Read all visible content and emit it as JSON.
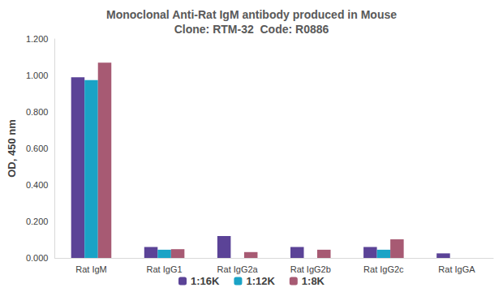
{
  "chart_data": {
    "type": "bar",
    "title": "Monoclonal Anti-Rat IgM antibody produced in Mouse\nClone: RTM-32  Code: R0886",
    "y_label": "OD, 450 nm",
    "categories": [
      "Rat IgM",
      "Rat IgG1",
      "Rat IgG2a",
      "Rat IgG2b",
      "Rat IgG2c",
      "Rat IgGA"
    ],
    "series": [
      {
        "name": "1:16K",
        "color": "#5b4397",
        "values": [
          0.99,
          0.06,
          0.12,
          0.06,
          0.06,
          0.025
        ]
      },
      {
        "name": "1:12K",
        "color": "#1aa3c6",
        "values": [
          0.975,
          0.045,
          0,
          0,
          0.045,
          0
        ]
      },
      {
        "name": "1:8K",
        "color": "#a75a73",
        "values": [
          1.07,
          0.048,
          0.032,
          0.045,
          0.102,
          0
        ]
      }
    ],
    "ylim": [
      0,
      1.2
    ],
    "yticks": [
      {
        "value": 0,
        "label": "0.000"
      },
      {
        "value": 0.2,
        "label": "0.200"
      },
      {
        "value": 0.4,
        "label": "0.400"
      },
      {
        "value": 0.6,
        "label": "0.600"
      },
      {
        "value": 0.8,
        "label": "0.800"
      },
      {
        "value": 1.0,
        "label": "1.000"
      },
      {
        "value": 1.2,
        "label": "1.200"
      }
    ],
    "grid": false,
    "legend": "bottom"
  }
}
